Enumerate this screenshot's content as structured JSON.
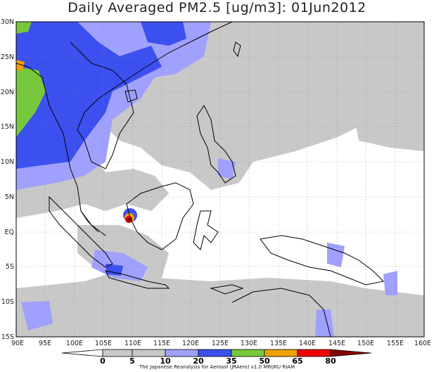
{
  "title": "Daily Averaged PM2.5 [ug/m3]: 01Jun2012",
  "credit": "The Japanese Reanalysis for Aerosol (JRAero) v1.0 MRI/KU RIAM",
  "lat_labels": [
    "30N",
    "25N",
    "20N",
    "15N",
    "10N",
    "5N",
    "EQ",
    "5S",
    "10S",
    "15S"
  ],
  "lon_labels": [
    "90E",
    "95E",
    "100E",
    "105E",
    "110E",
    "115E",
    "120E",
    "125E",
    "130E",
    "135E",
    "140E",
    "145E",
    "150E",
    "155E",
    "160E"
  ],
  "colorbar": {
    "levels": [
      "0",
      "5",
      "10",
      "20",
      "35",
      "50",
      "65",
      "80"
    ],
    "colors": [
      "#ffffff",
      "#c8c8c8",
      "#a0a0ff",
      "#3c50f0",
      "#78c83c",
      "#f0a000",
      "#f00000",
      "#800000"
    ]
  },
  "map_data": {
    "lon_range": [
      90,
      160
    ],
    "lat_range": [
      -15,
      30
    ],
    "variable": "PM2.5",
    "units": "ug/m3",
    "date": "01Jun2012"
  }
}
